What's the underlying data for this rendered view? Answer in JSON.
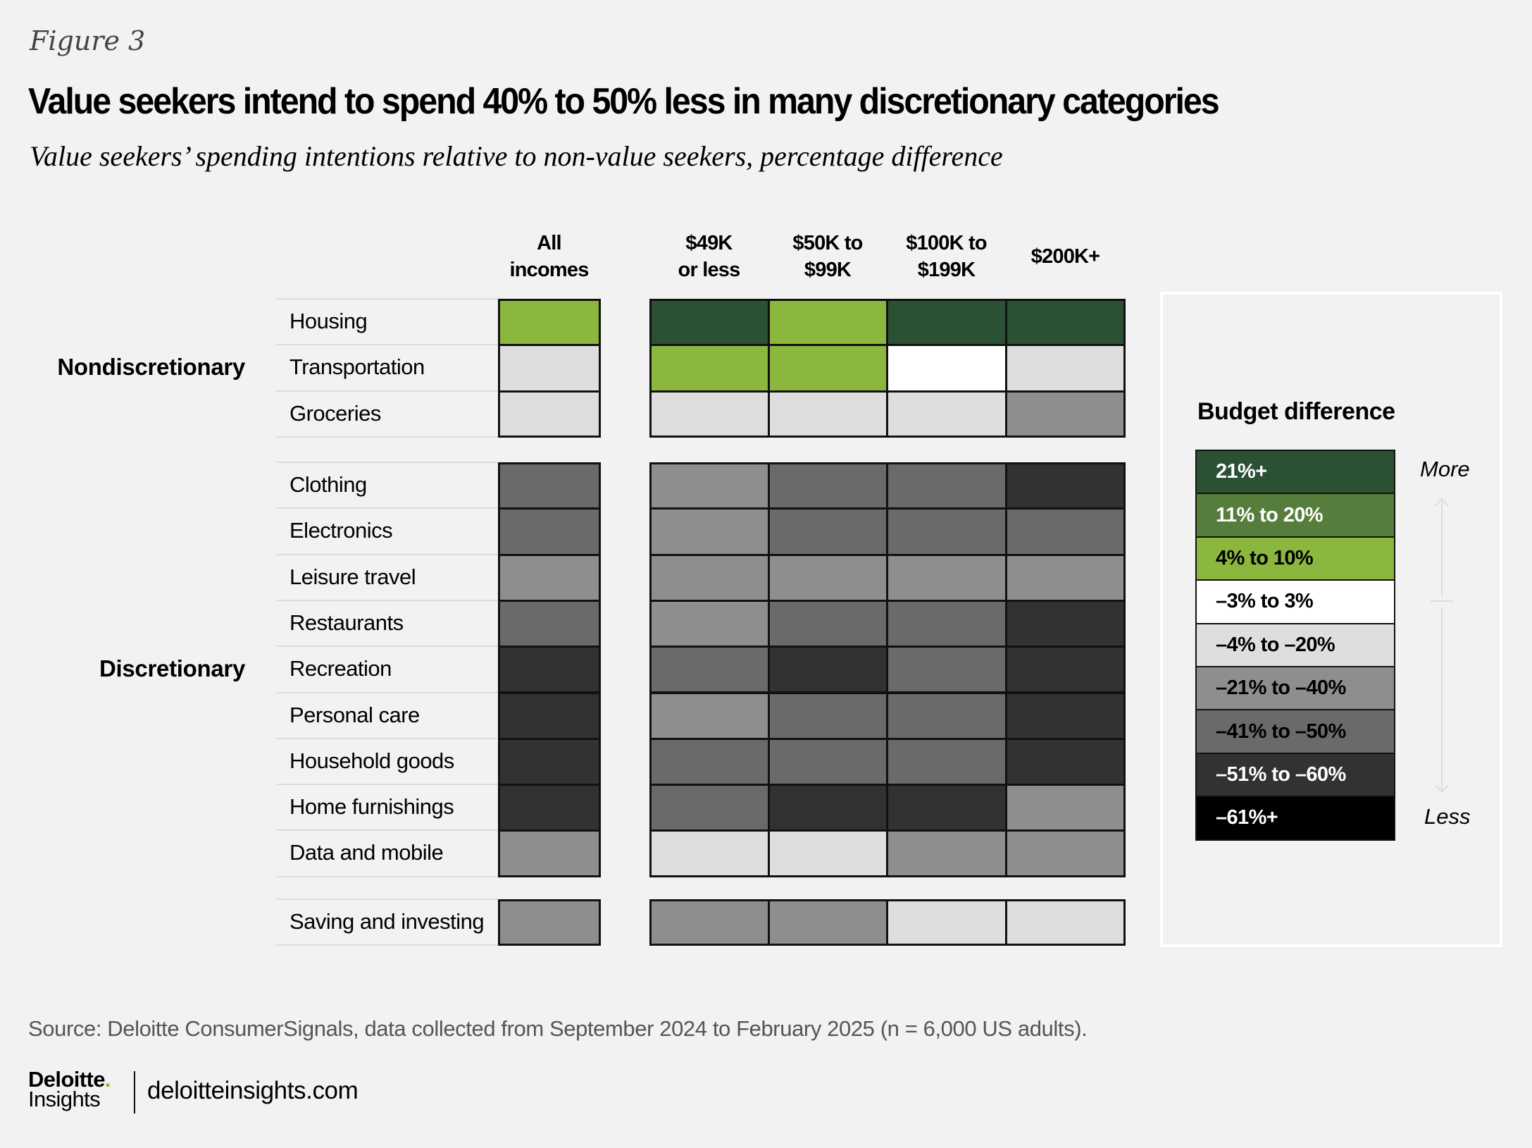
{
  "header": {
    "figure_label": "Figure 3",
    "title": "Value seekers intend to spend 40% to 50% less in many discretionary categories",
    "subtitle": "Value seekers’ spending intentions relative to non-value seekers, percentage difference"
  },
  "chart_data": {
    "type": "heatmap",
    "title": "Value seekers intend to spend 40% to 50% less in many discretionary categories",
    "subtitle": "Value seekers’ spending intentions relative to non-value seekers, percentage difference",
    "columns": [
      "All incomes",
      "$49K or less",
      "$50K to $99K",
      "$100K to $199K",
      "$200K+"
    ],
    "column_header_lines": [
      [
        "All",
        "incomes"
      ],
      [
        "$49K",
        "or less"
      ],
      [
        "$50K to",
        "$99K"
      ],
      [
        "$100K to",
        "$199K"
      ],
      [
        "$200K+"
      ]
    ],
    "groups": [
      {
        "label": "Nondiscretionary",
        "rows": [
          {
            "category": "Housing",
            "bins": [
              "4% to 10%",
              "21%+",
              "4% to 10%",
              "21%+",
              "21%+"
            ]
          },
          {
            "category": "Transportation",
            "bins": [
              "–4% to –20%",
              "4% to 10%",
              "4% to 10%",
              "–3% to 3%",
              "–4% to –20%"
            ]
          },
          {
            "category": "Groceries",
            "bins": [
              "–4% to –20%",
              "–4% to –20%",
              "–4% to –20%",
              "–4% to –20%",
              "–21% to –40%"
            ]
          }
        ]
      },
      {
        "label": "Discretionary",
        "rows": [
          {
            "category": "Clothing",
            "bins": [
              "–41% to –50%",
              "–21% to –40%",
              "–41% to –50%",
              "–41% to –50%",
              "–51% to –60%"
            ]
          },
          {
            "category": "Electronics",
            "bins": [
              "–41% to –50%",
              "–21% to –40%",
              "–41% to –50%",
              "–41% to –50%",
              "–41% to –50%"
            ]
          },
          {
            "category": "Leisure travel",
            "bins": [
              "–21% to –40%",
              "–21% to –40%",
              "–21% to –40%",
              "–21% to –40%",
              "–21% to –40%"
            ]
          },
          {
            "category": "Restaurants",
            "bins": [
              "–41% to –50%",
              "–21% to –40%",
              "–41% to –50%",
              "–41% to –50%",
              "–51% to –60%"
            ]
          },
          {
            "category": "Recreation",
            "bins": [
              "–51% to –60%",
              "–41% to –50%",
              "–51% to –60%",
              "–41% to –50%",
              "–51% to –60%"
            ]
          },
          {
            "category": "Personal care",
            "bins": [
              "–51% to –60%",
              "–21% to –40%",
              "–41% to –50%",
              "–41% to –50%",
              "–51% to –60%"
            ]
          },
          {
            "category": "Household goods",
            "bins": [
              "–51% to –60%",
              "–41% to –50%",
              "–41% to –50%",
              "–41% to –50%",
              "–51% to –60%"
            ]
          },
          {
            "category": "Home furnishings",
            "bins": [
              "–51% to –60%",
              "–41% to –50%",
              "–51% to –60%",
              "–51% to –60%",
              "–21% to –40%"
            ]
          },
          {
            "category": "Data and mobile",
            "bins": [
              "–21% to –40%",
              "–4% to –20%",
              "–4% to –20%",
              "–21% to –40%",
              "–21% to –40%"
            ]
          }
        ]
      },
      {
        "label": "",
        "rows": [
          {
            "category": "Saving and investing",
            "bins": [
              "–21% to –40%",
              "–21% to –40%",
              "–21% to –40%",
              "–4% to –20%",
              "–4% to –20%"
            ]
          }
        ]
      }
    ],
    "legend": {
      "title": "Budget difference",
      "bins": [
        {
          "label": "21%+",
          "color": "#2b5135",
          "text_color": "#ffffff"
        },
        {
          "label": "11% to 20%",
          "color": "#567d3b",
          "text_color": "#ffffff"
        },
        {
          "label": "4% to 10%",
          "color": "#8cb73f",
          "text_color": "#000000"
        },
        {
          "label": "–3% to 3%",
          "color": "#ffffff",
          "text_color": "#000000"
        },
        {
          "label": "–4% to –20%",
          "color": "#dedede",
          "text_color": "#000000"
        },
        {
          "label": "–21% to –40%",
          "color": "#8e8e8e",
          "text_color": "#000000"
        },
        {
          "label": "–41% to –50%",
          "color": "#6a6a6a",
          "text_color": "#000000"
        },
        {
          "label": "–51% to –60%",
          "color": "#323232",
          "text_color": "#ffffff"
        },
        {
          "label": "–61%+",
          "color": "#000000",
          "text_color": "#ffffff"
        }
      ],
      "more_label": "More",
      "less_label": "Less",
      "placement": "right"
    }
  },
  "footer": {
    "source": "Source: Deloitte ConsumerSignals, data collected from September 2024 to February 2025 (n = 6,000 US adults).",
    "logo_top": "Deloitte",
    "logo_dot": ".",
    "logo_bottom": "Insights",
    "site": "deloitteinsights.com"
  }
}
